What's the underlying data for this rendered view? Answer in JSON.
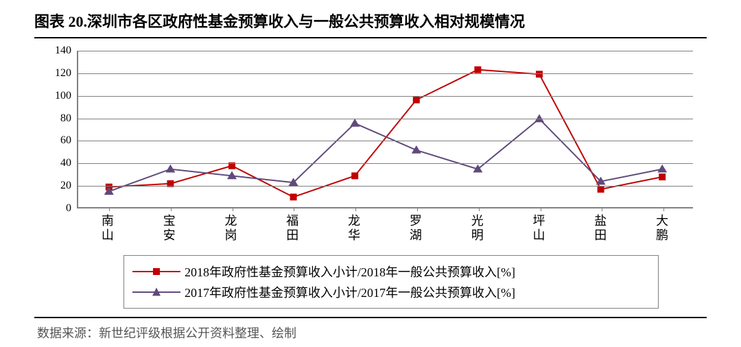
{
  "title": "图表 20.深圳市各区政府性基金预算收入与一般公共预算收入相对规模情况",
  "source": "数据来源：新世纪评级根据公开资料整理、绘制",
  "chart": {
    "type": "line",
    "background_color": "#ffffff",
    "grid_color": "#808080",
    "axis_color": "#808080",
    "line_width": 2,
    "marker_size": 10,
    "categories": [
      "南山",
      "宝安",
      "龙岗",
      "福田",
      "龙华",
      "罗湖",
      "光明",
      "坪山",
      "盐田",
      "大鹏"
    ],
    "y_axis": {
      "min": 0,
      "max": 140,
      "step": 20,
      "ticks": [
        0,
        20,
        40,
        60,
        80,
        100,
        120,
        140
      ],
      "fontsize": 16
    },
    "series": [
      {
        "key": "s2018",
        "label": "2018年政府性基金预算收入小计/2018年一般公共预算收入[%]",
        "color": "#c00000",
        "marker": "square",
        "values": [
          18,
          21,
          37,
          9,
          28,
          96,
          123,
          119,
          16,
          27
        ]
      },
      {
        "key": "s2017",
        "label": "2017年政府性基金预算收入小计/2017年一般公共预算收入[%]",
        "color": "#604a7b",
        "marker": "triangle",
        "values": [
          14,
          34,
          28,
          22,
          75,
          51,
          34,
          79,
          23,
          34
        ]
      }
    ],
    "x_label_fontsize": 18,
    "legend_fontsize": 18,
    "title_fontsize": 22
  }
}
